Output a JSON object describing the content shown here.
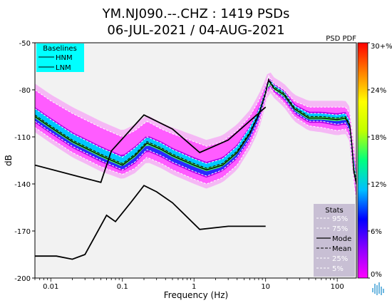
{
  "chart_data": {
    "type": "heatmap",
    "title_line1": "YM.NJ090.--.CHZ : 1419 PSDs",
    "title_line2": "06-JUL-2021 / 04-AUG-2021",
    "corner_label": "PSD PDF",
    "xlabel": "Frequency (Hz)",
    "ylabel": "dB",
    "x_scale": "log",
    "xlim": [
      0.006,
      185
    ],
    "ylim": [
      -200,
      -50
    ],
    "x_ticks": [
      {
        "value": 0.01,
        "label": "0.01"
      },
      {
        "value": 0.1,
        "label": "0.1"
      },
      {
        "value": 1,
        "label": "1"
      },
      {
        "value": 10,
        "label": "10"
      },
      {
        "value": 100,
        "label": "100"
      }
    ],
    "y_ticks": [
      -50,
      -80,
      -110,
      -140,
      -170,
      -200
    ],
    "colorbar": {
      "labels": [
        "30+%",
        "24%",
        "18%",
        "12%",
        "6%",
        "0%"
      ],
      "range": [
        0,
        30
      ],
      "colors": [
        "#ff00ff",
        "#8b00ff",
        "#0000ff",
        "#00c0ff",
        "#00ff80",
        "#c0ff00",
        "#ffff00",
        "#ff8000",
        "#ff0000"
      ]
    },
    "baselines_legend": {
      "title": "Baselines",
      "entries": [
        "HNM",
        "LNM"
      ],
      "background": "#00ffff"
    },
    "stats_legend": {
      "title": "Stats",
      "entries": [
        "95%",
        "75%",
        "Mode",
        "Mean",
        "25%",
        "5%"
      ],
      "background": "#c8bfd4"
    },
    "series": [
      {
        "name": "HNM",
        "points": [
          [
            0.006,
            -128
          ],
          [
            0.05,
            -139
          ],
          [
            0.07,
            -119
          ],
          [
            0.2,
            -96
          ],
          [
            0.5,
            -105
          ],
          [
            1.2,
            -120
          ],
          [
            3,
            -112
          ],
          [
            10,
            -91
          ]
        ]
      },
      {
        "name": "LNM",
        "points": [
          [
            0.006,
            -186
          ],
          [
            0.012,
            -186
          ],
          [
            0.02,
            -188
          ],
          [
            0.03,
            -185
          ],
          [
            0.06,
            -160
          ],
          [
            0.08,
            -164
          ],
          [
            0.13,
            -152
          ],
          [
            0.2,
            -141
          ],
          [
            0.3,
            -145
          ],
          [
            0.5,
            -152
          ],
          [
            1.2,
            -169
          ],
          [
            3,
            -167
          ],
          [
            10,
            -167
          ]
        ]
      },
      {
        "name": "Mode",
        "points": [
          [
            0.006,
            -97
          ],
          [
            0.01,
            -104
          ],
          [
            0.02,
            -113
          ],
          [
            0.05,
            -122
          ],
          [
            0.1,
            -128
          ],
          [
            0.15,
            -122
          ],
          [
            0.22,
            -114
          ],
          [
            0.35,
            -118
          ],
          [
            0.5,
            -122
          ],
          [
            1,
            -128
          ],
          [
            1.5,
            -131
          ],
          [
            2.5,
            -128
          ],
          [
            4,
            -120
          ],
          [
            6,
            -108
          ],
          [
            8,
            -96
          ],
          [
            10,
            -82
          ],
          [
            11,
            -74
          ],
          [
            13,
            -79
          ],
          [
            18,
            -83
          ],
          [
            25,
            -92
          ],
          [
            40,
            -98
          ],
          [
            60,
            -98
          ],
          [
            100,
            -99
          ],
          [
            130,
            -98
          ],
          [
            150,
            -103
          ],
          [
            160,
            -115
          ],
          [
            170,
            -132
          ],
          [
            185,
            -140
          ]
        ]
      },
      {
        "name": "Mean",
        "points": [
          [
            0.006,
            -96
          ],
          [
            0.01,
            -103
          ],
          [
            0.02,
            -112
          ],
          [
            0.05,
            -121
          ],
          [
            0.1,
            -127
          ],
          [
            0.15,
            -121
          ],
          [
            0.22,
            -113
          ],
          [
            0.35,
            -117
          ],
          [
            0.5,
            -121
          ],
          [
            1,
            -127
          ],
          [
            1.5,
            -130
          ],
          [
            2.5,
            -127
          ],
          [
            4,
            -119
          ],
          [
            6,
            -107
          ],
          [
            8,
            -95
          ],
          [
            10,
            -81
          ],
          [
            11,
            -73
          ],
          [
            13,
            -78
          ],
          [
            18,
            -82
          ],
          [
            25,
            -91
          ],
          [
            40,
            -97
          ],
          [
            60,
            -97
          ],
          [
            100,
            -98
          ],
          [
            130,
            -97
          ],
          [
            150,
            -102
          ],
          [
            160,
            -114
          ],
          [
            170,
            -130
          ],
          [
            185,
            -138
          ]
        ]
      },
      {
        "name": "95%",
        "points": [
          [
            0.006,
            -80
          ],
          [
            0.01,
            -87
          ],
          [
            0.02,
            -95
          ],
          [
            0.05,
            -104
          ],
          [
            0.1,
            -110
          ],
          [
            0.15,
            -106
          ],
          [
            0.22,
            -100
          ],
          [
            0.35,
            -105
          ],
          [
            0.5,
            -108
          ],
          [
            1,
            -113
          ],
          [
            1.5,
            -116
          ],
          [
            2.5,
            -113
          ],
          [
            4,
            -106
          ],
          [
            6,
            -97
          ],
          [
            8,
            -87
          ],
          [
            10,
            -77
          ],
          [
            11,
            -71
          ],
          [
            13,
            -76
          ],
          [
            18,
            -80
          ],
          [
            25,
            -87
          ],
          [
            40,
            -91
          ],
          [
            60,
            -91
          ],
          [
            100,
            -91
          ],
          [
            130,
            -91
          ],
          [
            150,
            -95
          ],
          [
            160,
            -105
          ],
          [
            170,
            -118
          ],
          [
            185,
            -130
          ]
        ]
      },
      {
        "name": "75%",
        "points": [
          [
            0.006,
            -92
          ],
          [
            0.01,
            -99
          ],
          [
            0.02,
            -108
          ],
          [
            0.05,
            -117
          ],
          [
            0.1,
            -123
          ],
          [
            0.15,
            -117
          ],
          [
            0.22,
            -110
          ],
          [
            0.35,
            -114
          ],
          [
            0.5,
            -118
          ],
          [
            1,
            -124
          ],
          [
            1.5,
            -127
          ],
          [
            2.5,
            -124
          ],
          [
            4,
            -116
          ],
          [
            6,
            -104
          ],
          [
            8,
            -93
          ],
          [
            10,
            -80
          ],
          [
            11,
            -72
          ],
          [
            13,
            -77
          ],
          [
            18,
            -81
          ],
          [
            25,
            -90
          ],
          [
            40,
            -95
          ],
          [
            60,
            -95
          ],
          [
            100,
            -96
          ],
          [
            130,
            -95
          ],
          [
            150,
            -100
          ],
          [
            160,
            -111
          ],
          [
            170,
            -127
          ],
          [
            185,
            -136
          ]
        ]
      },
      {
        "name": "25%",
        "points": [
          [
            0.006,
            -100
          ],
          [
            0.01,
            -107
          ],
          [
            0.02,
            -116
          ],
          [
            0.05,
            -125
          ],
          [
            0.1,
            -131
          ],
          [
            0.15,
            -126
          ],
          [
            0.22,
            -118
          ],
          [
            0.35,
            -122
          ],
          [
            0.5,
            -126
          ],
          [
            1,
            -132
          ],
          [
            1.5,
            -135
          ],
          [
            2.5,
            -131
          ],
          [
            4,
            -123
          ],
          [
            6,
            -111
          ],
          [
            8,
            -99
          ],
          [
            10,
            -84
          ],
          [
            11,
            -75
          ],
          [
            13,
            -80
          ],
          [
            18,
            -85
          ],
          [
            25,
            -94
          ],
          [
            40,
            -100
          ],
          [
            60,
            -100
          ],
          [
            100,
            -102
          ],
          [
            130,
            -101
          ],
          [
            150,
            -106
          ],
          [
            160,
            -118
          ],
          [
            170,
            -135
          ],
          [
            185,
            -143
          ]
        ]
      },
      {
        "name": "5%",
        "points": [
          [
            0.006,
            -104
          ],
          [
            0.01,
            -111
          ],
          [
            0.02,
            -120
          ],
          [
            0.05,
            -129
          ],
          [
            0.1,
            -134
          ],
          [
            0.15,
            -130
          ],
          [
            0.22,
            -123
          ],
          [
            0.35,
            -127
          ],
          [
            0.5,
            -131
          ],
          [
            1,
            -137
          ],
          [
            1.5,
            -140
          ],
          [
            2.5,
            -136
          ],
          [
            4,
            -128
          ],
          [
            6,
            -115
          ],
          [
            8,
            -103
          ],
          [
            10,
            -87
          ],
          [
            11,
            -77
          ],
          [
            13,
            -82
          ],
          [
            18,
            -88
          ],
          [
            25,
            -97
          ],
          [
            40,
            -103
          ],
          [
            60,
            -104
          ],
          [
            100,
            -106
          ],
          [
            130,
            -105
          ],
          [
            150,
            -110
          ],
          [
            160,
            -123
          ],
          [
            170,
            -140
          ],
          [
            185,
            -150
          ]
        ]
      }
    ]
  }
}
